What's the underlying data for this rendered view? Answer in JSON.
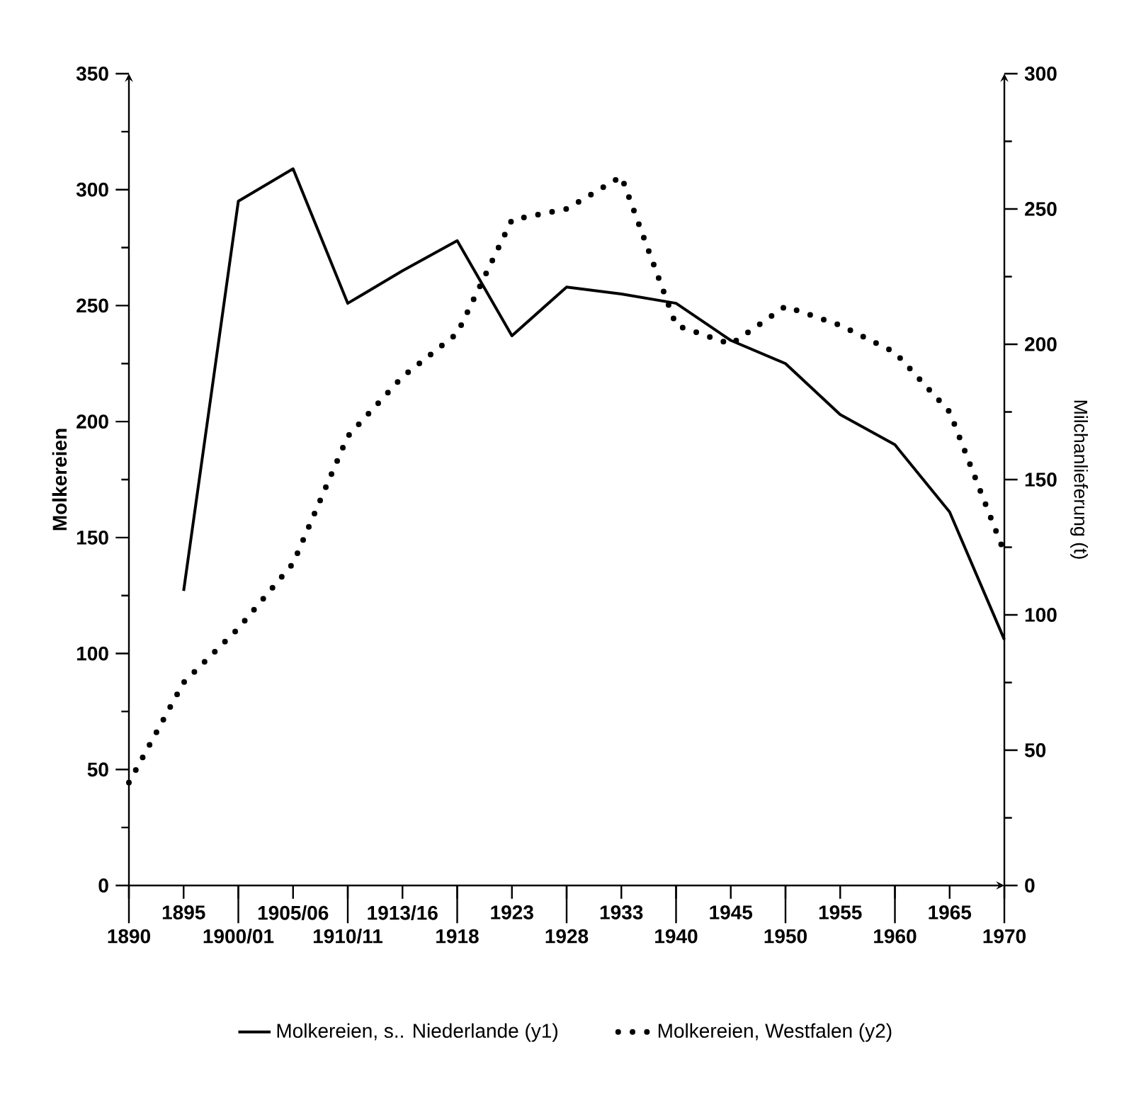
{
  "chart_data": {
    "type": "line",
    "categories": [
      "1890",
      "1895",
      "1900/01",
      "1905/06",
      "1910/11",
      "1913/16",
      "1918",
      "1923",
      "1928",
      "1933",
      "1940",
      "1945",
      "1950",
      "1955",
      "1960",
      "1965",
      "1970"
    ],
    "ylabel": "Molkereien",
    "y2label": "Milchanlieferung (t)",
    "ylim": [
      0,
      350
    ],
    "yticks": [
      0,
      50,
      100,
      150,
      200,
      250,
      300,
      350
    ],
    "y2lim": [
      0,
      300
    ],
    "y2ticks": [
      0,
      50,
      100,
      150,
      200,
      250,
      300
    ],
    "legend": "bottom",
    "grid": false,
    "series": [
      {
        "name": "Molkereien, s.. Niederlande (y1)",
        "color": "#000000",
        "line_style": "solid",
        "values": [
          null,
          127,
          295,
          309,
          251,
          265,
          278,
          237,
          258,
          255,
          251,
          235,
          225,
          203,
          190,
          161,
          106
        ]
      },
      {
        "name": "Molkereien, Westfalen (y2)",
        "color": "#000000",
        "line_style": "dotted",
        "axis": "y2",
        "values": [
          38,
          75,
          95,
          119,
          166,
          188,
          204,
          246,
          250,
          262,
          207,
          200,
          214,
          207,
          197,
          175,
          123
        ]
      }
    ]
  }
}
